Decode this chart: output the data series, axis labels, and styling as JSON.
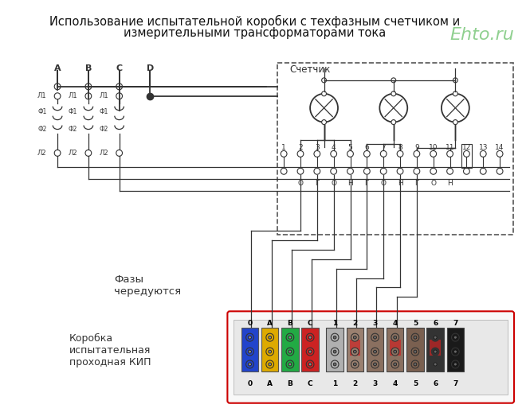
{
  "title_line1": "Использование испытательной коробки с техфазным счетчиком и",
  "title_line2": "измерительными трансформаторами тока",
  "watermark": "Ehto.ru",
  "bg_color": "#ffffff",
  "diagram_bg": "#f0f0f0",
  "border_color": "#333333",
  "text_color": "#111111",
  "watermark_color": "#90d090",
  "title_fontsize": 10.5,
  "watermark_fontsize": 16,
  "label_fontsize": 7.5
}
